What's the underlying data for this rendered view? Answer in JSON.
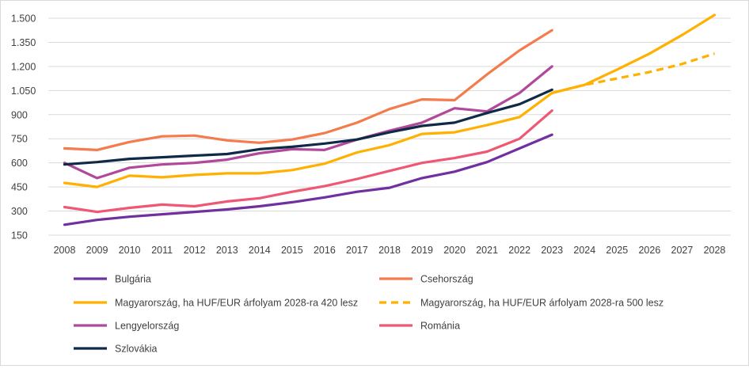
{
  "chart_data": {
    "type": "line",
    "title": "",
    "xlabel": "",
    "ylabel": "",
    "ylim": [
      150,
      1500
    ],
    "y_ticks": [
      "150",
      "300",
      "450",
      "600",
      "750",
      "900",
      "1.050",
      "1.200",
      "1.350",
      "1.500"
    ],
    "y_tick_values": [
      150,
      300,
      450,
      600,
      750,
      900,
      1050,
      1200,
      1350,
      1500
    ],
    "categories": [
      "2008",
      "2009",
      "2010",
      "2011",
      "2012",
      "2013",
      "2014",
      "2015",
      "2016",
      "2017",
      "2018",
      "2019",
      "2020",
      "2021",
      "2022",
      "2023",
      "2024",
      "2025",
      "2026",
      "2027",
      "2028"
    ],
    "grid": "horizontal",
    "legend_position": "bottom",
    "series": [
      {
        "name": "Bulgária",
        "color": "#7030A0",
        "dash": "solid",
        "values": [
          215,
          245,
          265,
          280,
          295,
          310,
          330,
          355,
          385,
          420,
          445,
          505,
          545,
          605,
          690,
          775,
          null,
          null,
          null,
          null,
          null
        ]
      },
      {
        "name": "Csehország",
        "color": "#F47B4C",
        "dash": "solid",
        "values": [
          690,
          680,
          730,
          765,
          770,
          740,
          725,
          745,
          785,
          850,
          935,
          995,
          990,
          1150,
          1300,
          1425,
          null,
          null,
          null,
          null,
          null
        ]
      },
      {
        "name": "Magyarország, ha HUF/EUR árfolyam 2028-ra 420 lesz",
        "color": "#FFB000",
        "dash": "solid",
        "values": [
          475,
          450,
          520,
          510,
          525,
          535,
          535,
          555,
          595,
          665,
          710,
          780,
          790,
          835,
          885,
          1035,
          1085,
          1180,
          1280,
          1395,
          1520
        ]
      },
      {
        "name": "Magyarország, ha HUF/EUR árfolyam 2028-ra 500 lesz",
        "color": "#FFB000",
        "dash": "dashed",
        "values": [
          null,
          null,
          null,
          null,
          null,
          null,
          null,
          null,
          null,
          null,
          null,
          null,
          null,
          null,
          null,
          1035,
          1085,
          1125,
          1165,
          1215,
          1280
        ]
      },
      {
        "name": "Lengyelország",
        "color": "#B1489A",
        "dash": "solid",
        "values": [
          600,
          505,
          570,
          590,
          600,
          620,
          660,
          685,
          680,
          745,
          800,
          850,
          940,
          920,
          1035,
          1200,
          null,
          null,
          null,
          null,
          null
        ]
      },
      {
        "name": "Románia",
        "color": "#EE5873",
        "dash": "solid",
        "values": [
          325,
          295,
          320,
          340,
          330,
          360,
          380,
          420,
          455,
          500,
          550,
          600,
          630,
          670,
          750,
          925,
          null,
          null,
          null,
          null,
          null
        ]
      },
      {
        "name": "Szlovákia",
        "color": "#0E2A47",
        "dash": "solid",
        "values": [
          590,
          605,
          625,
          635,
          645,
          655,
          685,
          700,
          720,
          745,
          790,
          830,
          850,
          910,
          965,
          1055,
          null,
          null,
          null,
          null,
          null
        ]
      }
    ]
  }
}
